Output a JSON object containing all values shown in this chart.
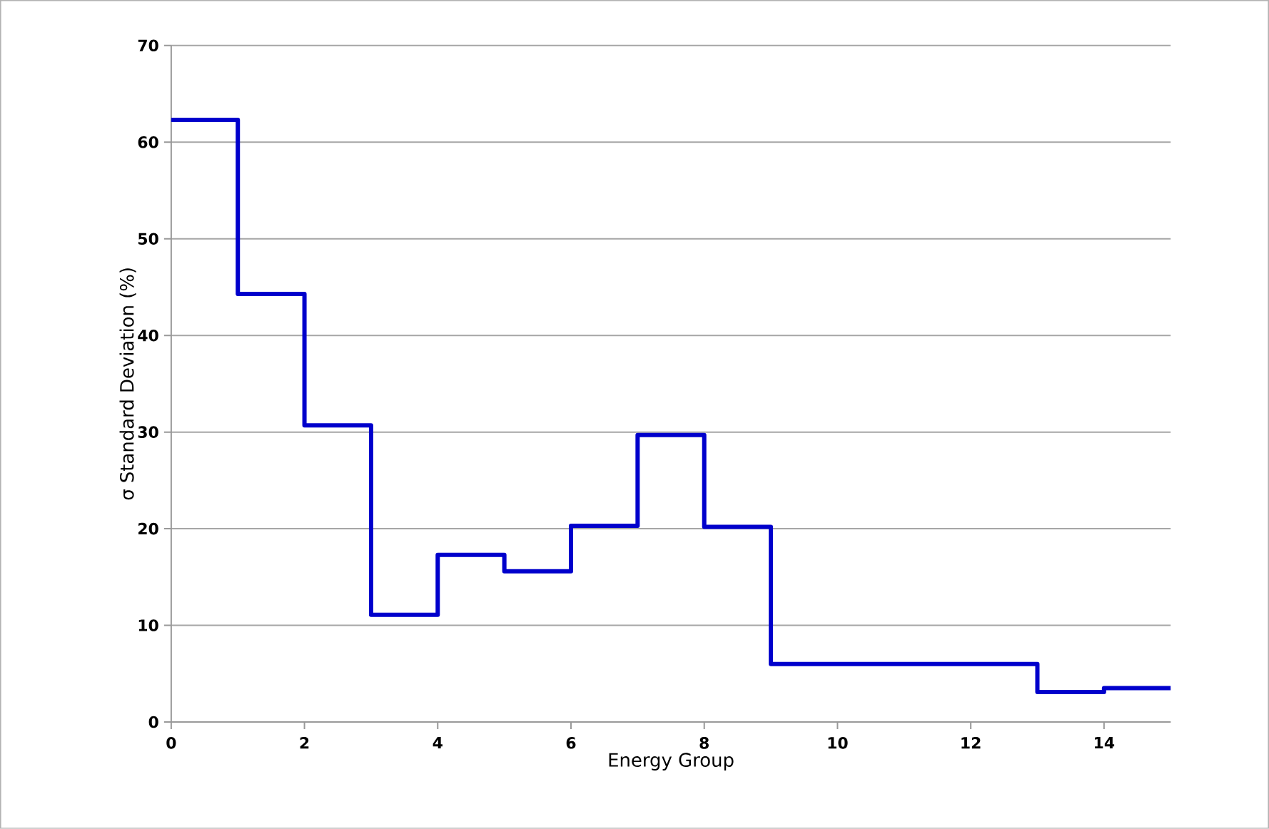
{
  "chart_data": {
    "type": "step",
    "xlabel": "Energy Group",
    "ylabel": "σ Standard Deviation (%)",
    "x": [
      0,
      1,
      2,
      3,
      4,
      5,
      6,
      7,
      8,
      9,
      10,
      11,
      12,
      13,
      14,
      15
    ],
    "values": [
      62.3,
      44.3,
      30.7,
      11.1,
      17.3,
      15.6,
      20.3,
      29.7,
      20.2,
      6.0,
      6.0,
      6.0,
      6.0,
      3.1,
      3.5,
      3.5
    ],
    "color": "#0000cc",
    "xlim": [
      0,
      15
    ],
    "xticks": [
      0,
      2,
      4,
      6,
      8,
      10,
      12,
      14
    ],
    "ylim": [
      0,
      70
    ],
    "yticks": [
      0,
      10,
      20,
      30,
      40,
      50,
      60,
      70
    ],
    "grid": "y",
    "marker": "none",
    "line_style": "solid"
  }
}
